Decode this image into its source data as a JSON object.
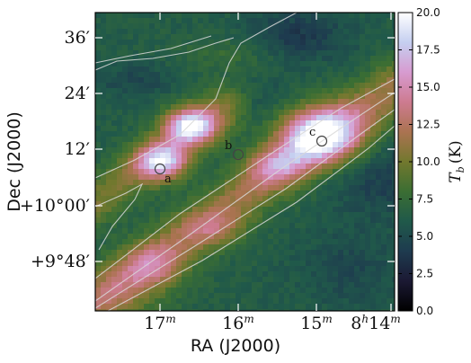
{
  "chart_data": {
    "type": "heatmap",
    "xlabel": "RA (J2000)",
    "ylabel": "Dec (J2000)",
    "x_ticks": [
      {
        "base": "17",
        "sup": "m"
      },
      {
        "base": "16",
        "sup": "m"
      },
      {
        "base": "15",
        "sup": "m"
      },
      {
        "base": "8",
        "sup": "h",
        "base2": "14",
        "sup2": "m"
      }
    ],
    "y_ticks": [
      {
        "text": "36′"
      },
      {
        "text": "24′"
      },
      {
        "text": "12′"
      },
      {
        "text": "+10°00′"
      },
      {
        "text": "+9°48′"
      }
    ],
    "colorbar": {
      "label_main": "T",
      "label_sub": "b",
      "label_unit": "(K)",
      "min": 0.0,
      "max": 20.0,
      "ticks": [
        "0.0",
        "2.5",
        "5.0",
        "7.5",
        "10.0",
        "12.5",
        "15.0",
        "17.5",
        "20.0"
      ],
      "colormap": [
        "#000000",
        "#1b1933",
        "#1e3b4f",
        "#20594a",
        "#3b6e33",
        "#72782e",
        "#ab7351",
        "#cd7b90",
        "#d79bd0",
        "#c5cff0",
        "#ffffff"
      ]
    },
    "sources": [
      {
        "label": "a"
      },
      {
        "label": "b"
      },
      {
        "label": "c"
      }
    ]
  }
}
